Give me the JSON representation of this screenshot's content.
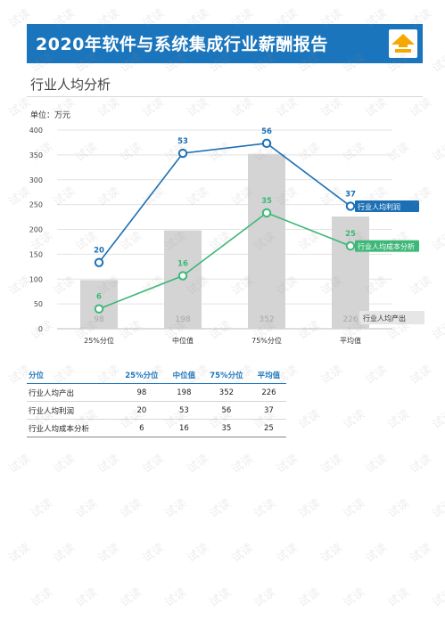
{
  "header": {
    "title": "2020年软件与系统集成行业薪酬报告",
    "color": "#1b75bc",
    "logo_icon": "up-arrow-logo-icon",
    "logo_color": "#f5a800"
  },
  "section": {
    "title": "行业人均分析"
  },
  "unit_label": "单位：万元",
  "chart_data": {
    "type": "bar+line",
    "categories": [
      "25%分位",
      "中位值",
      "75%分位",
      "平均值"
    ],
    "ylim": [
      0,
      400
    ],
    "yticks": [
      0,
      50,
      100,
      150,
      200,
      250,
      300,
      350,
      400
    ],
    "grid": true,
    "bars": {
      "name": "行业人均产出",
      "values": [
        98,
        198,
        352,
        226
      ],
      "color": "#d4d4d4",
      "label_color": "#a8a8a8"
    },
    "lines": [
      {
        "name": "行业人均利润",
        "values": [
          20,
          53,
          56,
          37
        ],
        "color": "#1b6fb5"
      },
      {
        "name": "行业人均成本分析",
        "values": [
          6,
          16,
          35,
          25
        ],
        "color": "#3cb878"
      }
    ],
    "line_scale_note_values_plotted": true
  },
  "table": {
    "headers": [
      "分位",
      "25%分位",
      "中位值",
      "75%分位",
      "平均值"
    ],
    "rows": [
      {
        "label": "行业人均产出",
        "values": [
          "98",
          "198",
          "352",
          "226"
        ]
      },
      {
        "label": "行业人均利润",
        "values": [
          "20",
          "53",
          "56",
          "37"
        ]
      },
      {
        "label": "行业人均成本分析",
        "values": [
          "6",
          "16",
          "35",
          "25"
        ]
      }
    ]
  },
  "watermark": {
    "text": "试读"
  }
}
